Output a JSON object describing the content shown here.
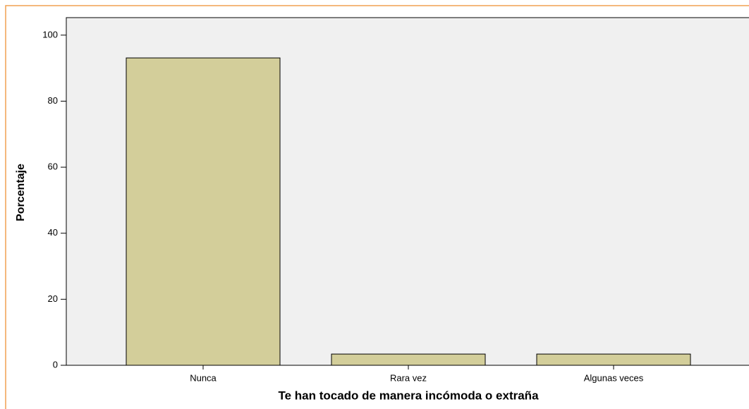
{
  "chart_data": {
    "type": "bar",
    "x_label": "Te han tocado de manera incómoda o extraña",
    "y_label": "Porcentaje",
    "categories": [
      "Nunca",
      "Rara vez",
      "Algunas veces"
    ],
    "values": [
      93.1,
      3.4,
      3.4
    ],
    "color": "#d3ce9a",
    "ylim": [
      0,
      105.3
    ],
    "yticks": [
      0,
      20,
      40,
      60,
      80,
      100
    ]
  }
}
